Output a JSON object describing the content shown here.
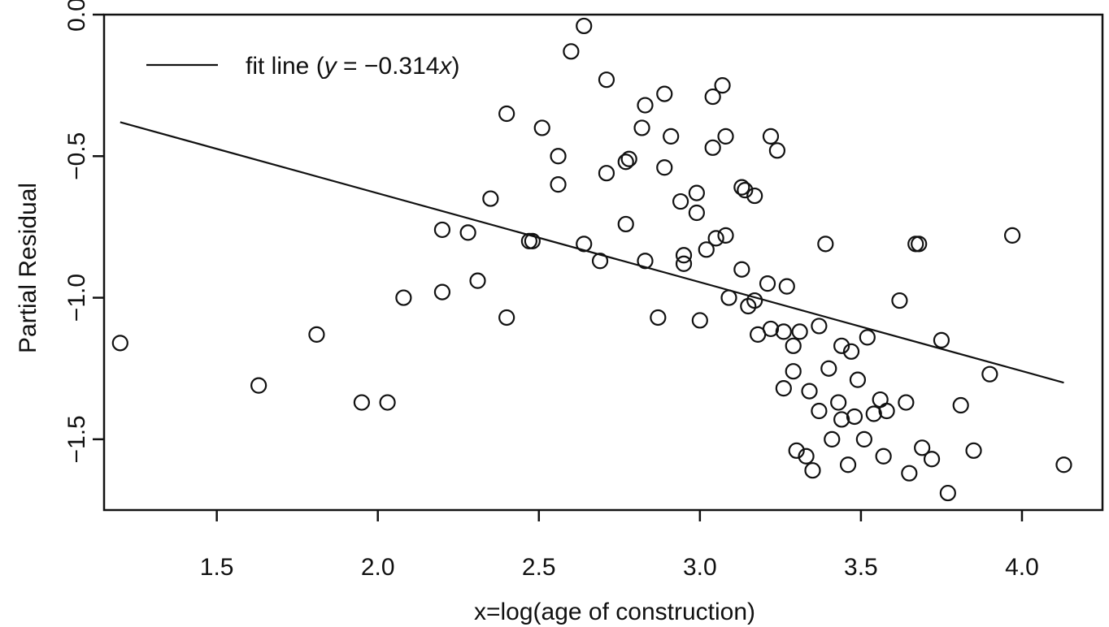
{
  "chart_data": {
    "type": "scatter",
    "xlabel": "x=log(age of construction)",
    "ylabel": "Partial Residual",
    "xlim": [
      1.15,
      4.25
    ],
    "ylim": [
      -1.75,
      0.0
    ],
    "x_ticks": [
      "1.5",
      "2.0",
      "2.5",
      "3.0",
      "3.5",
      "4.0"
    ],
    "x_tick_values": [
      1.5,
      2.0,
      2.5,
      3.0,
      3.5,
      4.0
    ],
    "y_ticks": [
      "0.0",
      "−0.5",
      "−1.0",
      "−1.5"
    ],
    "y_tick_values": [
      0.0,
      -0.5,
      -1.0,
      -1.5
    ],
    "grid": false,
    "legend": {
      "position": "top-left",
      "entries": [
        {
          "label_prefix": "fit line (",
          "label_var_y": "y",
          "label_mid": " = −0.314",
          "label_var_x": "x",
          "label_suffix": ")"
        }
      ]
    },
    "fit_line": {
      "x": [
        1.2,
        4.13
      ],
      "y": [
        -0.38,
        -1.3
      ],
      "slope": -0.314
    },
    "points": [
      [
        1.2,
        -1.16
      ],
      [
        1.63,
        -1.31
      ],
      [
        1.81,
        -1.13
      ],
      [
        1.95,
        -1.37
      ],
      [
        2.03,
        -1.37
      ],
      [
        2.08,
        -1.0
      ],
      [
        2.2,
        -0.98
      ],
      [
        2.2,
        -0.76
      ],
      [
        2.28,
        -0.77
      ],
      [
        2.31,
        -0.94
      ],
      [
        2.35,
        -0.65
      ],
      [
        2.4,
        -0.35
      ],
      [
        2.4,
        -1.07
      ],
      [
        2.47,
        -0.8
      ],
      [
        2.48,
        -0.8
      ],
      [
        2.51,
        -0.4
      ],
      [
        2.56,
        -0.5
      ],
      [
        2.56,
        -0.6
      ],
      [
        2.6,
        -0.13
      ],
      [
        2.64,
        -0.04
      ],
      [
        2.64,
        -0.81
      ],
      [
        2.69,
        -0.87
      ],
      [
        2.71,
        -0.23
      ],
      [
        2.71,
        -0.56
      ],
      [
        2.77,
        -0.74
      ],
      [
        2.77,
        -0.52
      ],
      [
        2.78,
        -0.51
      ],
      [
        2.82,
        -0.4
      ],
      [
        2.83,
        -0.32
      ],
      [
        2.83,
        -0.87
      ],
      [
        2.87,
        -1.07
      ],
      [
        2.89,
        -0.28
      ],
      [
        2.89,
        -0.54
      ],
      [
        2.91,
        -0.43
      ],
      [
        2.94,
        -0.66
      ],
      [
        2.95,
        -0.85
      ],
      [
        2.95,
        -0.88
      ],
      [
        2.99,
        -0.63
      ],
      [
        2.99,
        -0.7
      ],
      [
        3.0,
        -1.08
      ],
      [
        3.02,
        -0.83
      ],
      [
        3.04,
        -0.29
      ],
      [
        3.04,
        -0.47
      ],
      [
        3.05,
        -0.79
      ],
      [
        3.07,
        -0.25
      ],
      [
        3.08,
        -0.43
      ],
      [
        3.08,
        -0.78
      ],
      [
        3.09,
        -1.0
      ],
      [
        3.13,
        -0.61
      ],
      [
        3.13,
        -0.9
      ],
      [
        3.14,
        -0.62
      ],
      [
        3.15,
        -1.03
      ],
      [
        3.17,
        -1.01
      ],
      [
        3.17,
        -0.64
      ],
      [
        3.18,
        -1.13
      ],
      [
        3.21,
        -0.95
      ],
      [
        3.22,
        -0.43
      ],
      [
        3.22,
        -1.11
      ],
      [
        3.24,
        -0.48
      ],
      [
        3.26,
        -1.32
      ],
      [
        3.26,
        -1.12
      ],
      [
        3.27,
        -0.96
      ],
      [
        3.29,
        -1.17
      ],
      [
        3.29,
        -1.26
      ],
      [
        3.3,
        -1.54
      ],
      [
        3.31,
        -1.12
      ],
      [
        3.33,
        -1.56
      ],
      [
        3.34,
        -1.33
      ],
      [
        3.35,
        -1.61
      ],
      [
        3.37,
        -1.4
      ],
      [
        3.37,
        -1.1
      ],
      [
        3.39,
        -0.81
      ],
      [
        3.4,
        -1.25
      ],
      [
        3.41,
        -1.5
      ],
      [
        3.43,
        -1.37
      ],
      [
        3.44,
        -1.43
      ],
      [
        3.44,
        -1.17
      ],
      [
        3.46,
        -1.59
      ],
      [
        3.47,
        -1.19
      ],
      [
        3.48,
        -1.42
      ],
      [
        3.49,
        -1.29
      ],
      [
        3.51,
        -1.5
      ],
      [
        3.52,
        -1.14
      ],
      [
        3.54,
        -1.41
      ],
      [
        3.56,
        -1.36
      ],
      [
        3.57,
        -1.56
      ],
      [
        3.58,
        -1.4
      ],
      [
        3.62,
        -1.01
      ],
      [
        3.64,
        -1.37
      ],
      [
        3.65,
        -1.62
      ],
      [
        3.67,
        -0.81
      ],
      [
        3.68,
        -0.81
      ],
      [
        3.69,
        -1.53
      ],
      [
        3.72,
        -1.57
      ],
      [
        3.75,
        -1.15
      ],
      [
        3.77,
        -1.69
      ],
      [
        3.81,
        -1.38
      ],
      [
        3.85,
        -1.54
      ],
      [
        3.9,
        -1.27
      ],
      [
        3.97,
        -0.78
      ],
      [
        4.13,
        -1.59
      ]
    ]
  }
}
